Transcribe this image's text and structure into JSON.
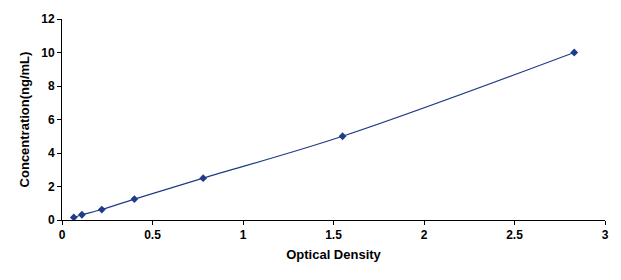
{
  "chart_data": {
    "type": "line",
    "x_label": "Optical Density",
    "y_label": "Concentration(ng/mL)",
    "x": [
      0.065,
      0.11,
      0.22,
      0.4,
      0.78,
      1.55,
      2.83
    ],
    "values": [
      0.156,
      0.312,
      0.625,
      1.25,
      2.5,
      5,
      10
    ],
    "color": "#1f3c88",
    "marker": "diamond",
    "line_style": "solid",
    "xlim": [
      0,
      3
    ],
    "xticks": [
      0,
      0.5,
      1,
      1.5,
      2,
      2.5,
      3
    ],
    "ylim": [
      0,
      12
    ],
    "yticks": [
      0,
      2,
      4,
      6,
      8,
      10,
      12
    ],
    "grid": false
  }
}
